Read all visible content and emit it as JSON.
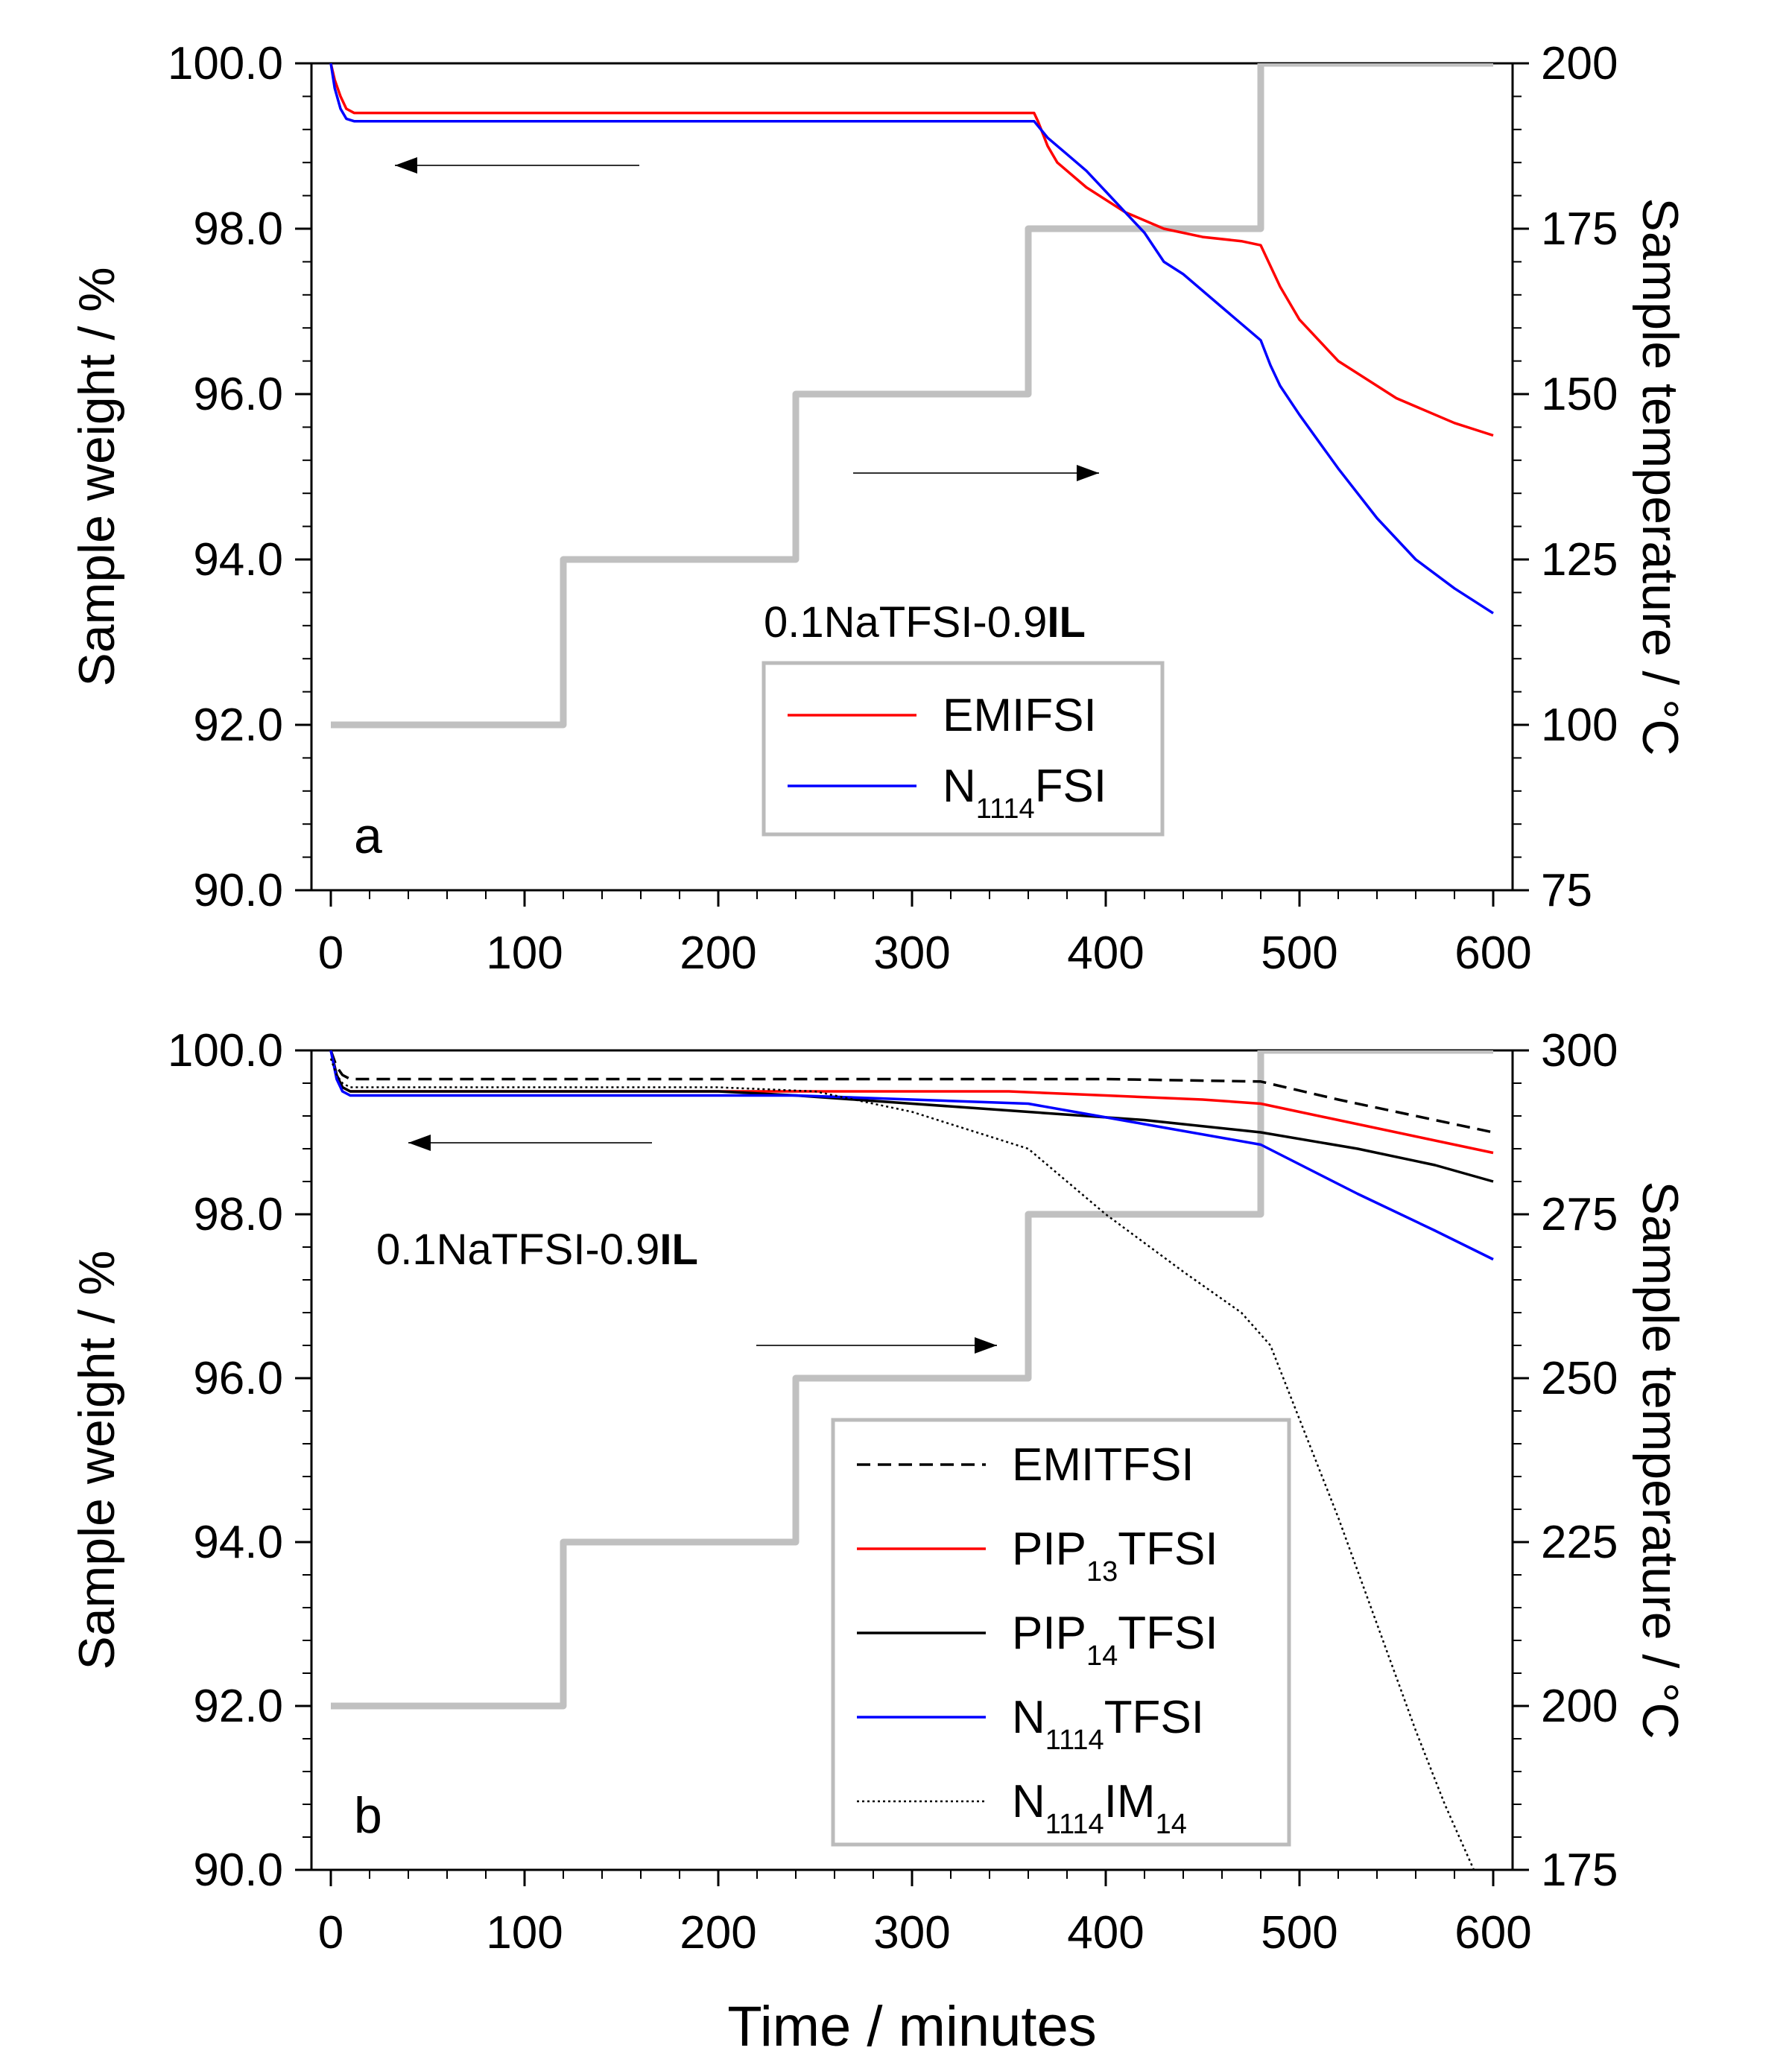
{
  "figure": {
    "xlabel": "Time / minutes",
    "colors": {
      "EMIFSI": "#ff0000",
      "N1114FSI": "#0000ff",
      "EMITFSI": "#000000",
      "PIP13TFSI": "#ff0000",
      "PIP14TFSI": "#000000",
      "N1114TFSI": "#0000ff",
      "N1114IM14": "#000000",
      "temperature": "#c0c0c0"
    }
  },
  "chart_data": [
    {
      "type": "line",
      "panel": "a",
      "annotation": {
        "prefix": "0.1NaTFSI-0.9",
        "bold": "IL"
      },
      "xlabel": "Time / minutes",
      "ylabel": "Sample weight / %",
      "y2label": "Sample temperature / °C",
      "xlim": [
        -10,
        610
      ],
      "ylim": [
        90,
        100
      ],
      "y2lim": [
        75,
        200
      ],
      "xticks": [
        "0",
        "100",
        "200",
        "300",
        "400",
        "500",
        "600"
      ],
      "yticks": [
        "90.0",
        "92.0",
        "94.0",
        "96.0",
        "98.0",
        "100.0"
      ],
      "y2ticks": [
        "75",
        "100",
        "125",
        "150",
        "175",
        "200"
      ],
      "legend": {
        "position": "bottom-center"
      },
      "series": [
        {
          "name": "EMIFSI",
          "label": "EMIFSI",
          "style": "solid",
          "color": "#ff0000",
          "x": [
            0,
            2,
            5,
            8,
            12,
            50,
            100,
            200,
            300,
            360,
            363,
            365,
            370,
            375,
            390,
            410,
            430,
            450,
            470,
            480,
            485,
            490,
            500,
            520,
            550,
            580,
            600
          ],
          "y": [
            100,
            99.8,
            99.6,
            99.45,
            99.4,
            99.4,
            99.4,
            99.4,
            99.4,
            99.4,
            99.4,
            99.3,
            99.0,
            98.8,
            98.5,
            98.2,
            98.0,
            97.9,
            97.85,
            97.8,
            97.55,
            97.3,
            96.9,
            96.4,
            95.95,
            95.65,
            95.5
          ]
        },
        {
          "name": "N1114FSI",
          "label": {
            "base": "N",
            "sub": "1114",
            "suffix": "FSI"
          },
          "style": "solid",
          "color": "#0000ff",
          "x": [
            0,
            2,
            5,
            8,
            12,
            50,
            100,
            200,
            300,
            360,
            363,
            370,
            380,
            390,
            400,
            410,
            420,
            430,
            440,
            460,
            480,
            485,
            490,
            500,
            520,
            540,
            560,
            580,
            600
          ],
          "y": [
            100,
            99.7,
            99.45,
            99.33,
            99.3,
            99.3,
            99.3,
            99.3,
            99.3,
            99.3,
            99.3,
            99.1,
            98.9,
            98.7,
            98.45,
            98.2,
            97.95,
            97.6,
            97.45,
            97.05,
            96.65,
            96.35,
            96.1,
            95.75,
            95.1,
            94.5,
            94.0,
            93.65,
            93.35
          ]
        },
        {
          "name": "Temperature",
          "label": "",
          "style": "step",
          "color": "#c0c0c0",
          "axis": "y2",
          "x": [
            0,
            120,
            120,
            240,
            240,
            360,
            360,
            480,
            480,
            600
          ],
          "y": [
            100,
            100,
            125,
            125,
            150,
            150,
            175,
            175,
            200,
            200
          ]
        }
      ]
    },
    {
      "type": "line",
      "panel": "b",
      "annotation": {
        "prefix": "0.1NaTFSI-0.9",
        "bold": "IL"
      },
      "xlabel": "Time / minutes",
      "ylabel": "Sample weight / %",
      "y2label": "Sample temperature / °C",
      "xlim": [
        -10,
        610
      ],
      "ylim": [
        90,
        100
      ],
      "y2lim": [
        175,
        300
      ],
      "xticks": [
        "0",
        "100",
        "200",
        "300",
        "400",
        "500",
        "600"
      ],
      "yticks": [
        "90.0",
        "92.0",
        "94.0",
        "96.0",
        "98.0",
        "100.0"
      ],
      "y2ticks": [
        "175",
        "200",
        "225",
        "250",
        "275",
        "300"
      ],
      "legend": {
        "position": "bottom-center"
      },
      "series": [
        {
          "name": "EMITFSI",
          "label": "EMITFSI",
          "style": "dashed",
          "color": "#000000",
          "x": [
            0,
            3,
            6,
            10,
            100,
            200,
            300,
            400,
            480,
            520,
            560,
            600
          ],
          "y": [
            100,
            99.8,
            99.7,
            99.65,
            99.65,
            99.65,
            99.65,
            99.65,
            99.62,
            99.4,
            99.2,
            99.0
          ]
        },
        {
          "name": "PIP13TFSI",
          "label": {
            "base": "PIP",
            "sub": "13",
            "suffix": "TFSI"
          },
          "style": "solid",
          "color": "#ff0000",
          "x": [
            0,
            3,
            6,
            10,
            100,
            200,
            250,
            300,
            350,
            400,
            450,
            480,
            520,
            560,
            600
          ],
          "y": [
            100,
            99.7,
            99.55,
            99.5,
            99.5,
            99.5,
            99.5,
            99.5,
            99.5,
            99.45,
            99.4,
            99.35,
            99.15,
            98.95,
            98.75
          ]
        },
        {
          "name": "PIP14TFSI",
          "label": {
            "base": "PIP",
            "sub": "14",
            "suffix": "TFSI"
          },
          "style": "solid",
          "color": "#000000",
          "x": [
            0,
            3,
            6,
            10,
            100,
            200,
            240,
            300,
            360,
            420,
            480,
            530,
            570,
            600
          ],
          "y": [
            100,
            99.7,
            99.55,
            99.5,
            99.5,
            99.5,
            99.45,
            99.35,
            99.25,
            99.15,
            99.0,
            98.8,
            98.6,
            98.4
          ]
        },
        {
          "name": "N1114TFSI",
          "label": {
            "base": "N",
            "sub": "1114",
            "suffix": "TFSI"
          },
          "style": "solid",
          "color": "#0000ff",
          "x": [
            0,
            3,
            6,
            10,
            100,
            200,
            240,
            300,
            360,
            420,
            480,
            530,
            570,
            600
          ],
          "y": [
            100,
            99.65,
            99.5,
            99.45,
            99.45,
            99.45,
            99.45,
            99.4,
            99.35,
            99.1,
            98.85,
            98.25,
            97.8,
            97.45
          ]
        },
        {
          "name": "N1114IM14",
          "label": {
            "base": "N",
            "sub": "1114",
            "mid": "IM",
            "sub2": "14"
          },
          "style": "dotted",
          "color": "#000000",
          "x": [
            0,
            3,
            6,
            10,
            100,
            200,
            250,
            300,
            360,
            400,
            440,
            470,
            485,
            500,
            520,
            540,
            560,
            575,
            590
          ],
          "y": [
            99.9,
            99.7,
            99.6,
            99.55,
            99.55,
            99.55,
            99.5,
            99.25,
            98.8,
            98.0,
            97.3,
            96.8,
            96.4,
            95.5,
            94.3,
            93.0,
            91.7,
            90.8,
            90.0
          ]
        },
        {
          "name": "Temperature",
          "label": "",
          "style": "step",
          "color": "#c0c0c0",
          "axis": "y2",
          "x": [
            0,
            120,
            120,
            240,
            240,
            360,
            360,
            480,
            480,
            600
          ],
          "y": [
            200,
            200,
            225,
            225,
            250,
            250,
            275,
            275,
            300,
            300
          ]
        }
      ]
    }
  ]
}
